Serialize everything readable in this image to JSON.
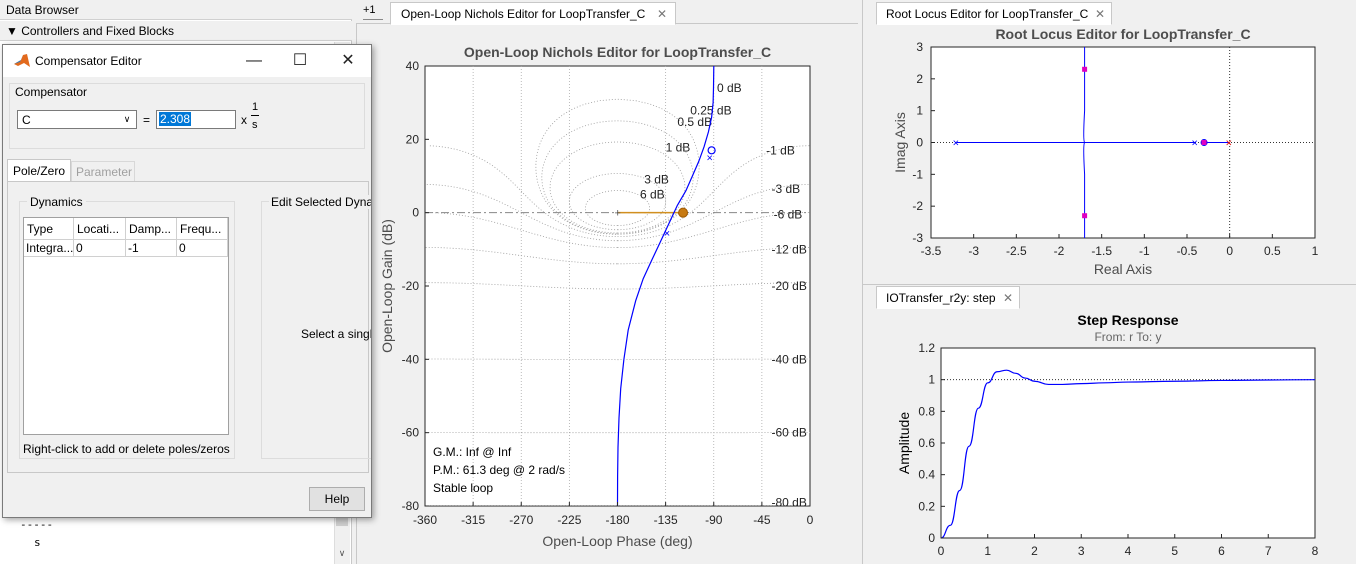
{
  "data_browser": {
    "title": "Data Browser",
    "section": "Controllers and Fixed Blocks",
    "fraction_bar": "-----",
    "fraction_den": "s"
  },
  "compensator_editor": {
    "title": "Compensator Editor",
    "group_label": "Compensator",
    "selected_compensator": "C",
    "equals": "=",
    "gain_value": "2.308",
    "times": "x",
    "tf_numerator": "1",
    "tf_denominator": "s",
    "tabs": [
      "Pole/Zero",
      "Parameter"
    ],
    "dynamics_label": "Dynamics",
    "table": {
      "headers": [
        "Type",
        "Locati...",
        "Damp...",
        "Frequ..."
      ],
      "rows": [
        [
          "Integra...",
          "0",
          "-1",
          "0"
        ]
      ]
    },
    "hint": "Right-click to add or delete poles/zeros",
    "edit_label": "Edit Selected Dynamics",
    "select_hint": "Select a single row to edit values",
    "help_label": "Help"
  },
  "nichols": {
    "plus_label": "+1",
    "tab_label": "Open-Loop Nichols Editor for LoopTransfer_C",
    "title": "Open-Loop Nichols Editor for LoopTransfer_C",
    "xlabel": "Open-Loop Phase (deg)",
    "ylabel": "Open-Loop Gain (dB)",
    "margins": [
      "G.M.: Inf @ Inf",
      "P.M.: 61.3 deg @ 2 rad/s",
      "Stable loop"
    ]
  },
  "root_locus": {
    "tab_label": "Root Locus Editor for LoopTransfer_C",
    "title": "Root Locus Editor for LoopTransfer_C",
    "xlabel": "Real Axis",
    "ylabel": "Imag Axis"
  },
  "step": {
    "tab_label": "IOTransfer_r2y: step",
    "title": "Step Response",
    "subtitle": "From: r  To: y",
    "ylabel": "Amplitude"
  },
  "chart_data": [
    {
      "type": "line",
      "title": "Open-Loop Nichols Editor for LoopTransfer_C",
      "xlabel": "Open-Loop Phase (deg)",
      "ylabel": "Open-Loop Gain (dB)",
      "xlim": [
        -360,
        0
      ],
      "ylim": [
        -80,
        40
      ],
      "xticks": [
        -360,
        -315,
        -270,
        -225,
        -180,
        -135,
        -90,
        -45,
        0
      ],
      "yticks": [
        -80,
        -60,
        -40,
        -20,
        0,
        20,
        40
      ],
      "grid": true,
      "grid_labels": [
        "0 dB",
        "0.25 dB",
        "0.5 dB",
        "1 dB",
        "3 dB",
        "6 dB",
        "-1 dB",
        "-3 dB",
        "-6 dB",
        "-12 dB",
        "-20 dB",
        "-40 dB",
        "-60 dB",
        "-80 dB"
      ],
      "series": [
        {
          "x": [
            -180,
            -179.9,
            -179.5,
            -178.6,
            -177,
            -174,
            -170,
            -163,
            -156,
            -148,
            -140,
            -132,
            -124,
            -116,
            -110,
            -104,
            -99,
            -95,
            -92,
            -90.6,
            -90.2,
            -90.05,
            -90
          ],
          "y": [
            -80,
            -72,
            -64,
            -56,
            -48,
            -40,
            -32,
            -24,
            -18,
            -13,
            -8,
            -3,
            2,
            6,
            10,
            14,
            18,
            22,
            26,
            30,
            34,
            38,
            40
          ]
        }
      ],
      "markers": [
        {
          "label": "pm_point",
          "x": -118.7,
          "y": 0
        },
        {
          "label": "x",
          "x": -133,
          "y": -5.5
        },
        {
          "label": "x",
          "x": -93,
          "y": 15
        },
        {
          "label": "o",
          "x": -92,
          "y": 17
        }
      ],
      "pm_line": {
        "x": [
          -180,
          -118.7
        ],
        "y": [
          0,
          0
        ]
      }
    },
    {
      "type": "scatter",
      "title": "Root Locus Editor for LoopTransfer_C",
      "xlabel": "Real Axis",
      "ylabel": "Imag Axis",
      "xlim": [
        -3.5,
        1
      ],
      "ylim": [
        -3,
        3
      ],
      "xticks": [
        -3.5,
        -3,
        -2.5,
        -2,
        -1.5,
        -1,
        -0.5,
        0,
        0.5,
        1
      ],
      "yticks": [
        -3,
        -2,
        -1,
        0,
        1,
        2,
        3
      ],
      "poles": [
        {
          "x": -3.2,
          "y": 0
        },
        {
          "x": -0.4,
          "y": 0
        },
        {
          "x": 0,
          "y": 0
        }
      ],
      "zeros": [
        {
          "x": -0.3,
          "y": 0
        }
      ],
      "closed_loop_poles": [
        {
          "x": -1.7,
          "y": 2.3
        },
        {
          "x": -1.7,
          "y": -2.3
        },
        {
          "x": -0.3,
          "y": 0
        }
      ]
    },
    {
      "type": "line",
      "title": "Step Response",
      "subtitle": "From: r  To: y",
      "xlabel": "",
      "ylabel": "Amplitude",
      "xlim": [
        0,
        8
      ],
      "ylim": [
        0,
        1.2
      ],
      "xticks": [
        0,
        1,
        2,
        3,
        4,
        5,
        6,
        7,
        8
      ],
      "yticks": [
        0,
        0.2,
        0.4,
        0.6,
        0.8,
        1,
        1.2
      ],
      "reference": 1,
      "series": [
        {
          "x": [
            0,
            0.2,
            0.4,
            0.6,
            0.8,
            1.0,
            1.2,
            1.4,
            1.6,
            1.8,
            2.0,
            2.3,
            2.6,
            3.0,
            3.5,
            4,
            5,
            6,
            7,
            8
          ],
          "y": [
            0,
            0.08,
            0.3,
            0.58,
            0.82,
            0.98,
            1.05,
            1.06,
            1.04,
            1.01,
            0.99,
            0.97,
            0.97,
            0.975,
            0.98,
            0.985,
            0.99,
            0.995,
            0.998,
            1.0
          ]
        }
      ]
    }
  ]
}
